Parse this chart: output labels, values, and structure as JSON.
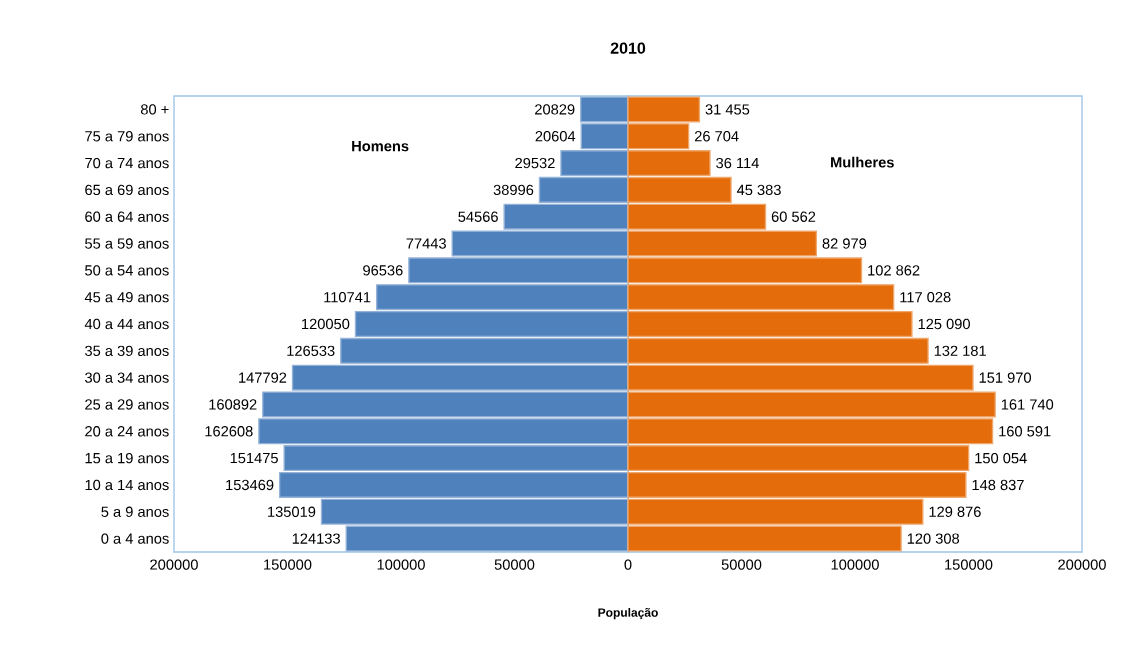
{
  "chart_data": [
    {
      "type": "bar",
      "orientation": "horizontal",
      "title": "2010",
      "categories": [
        "80 +",
        "75 a 79 anos",
        "70 a 74 anos",
        "65 a 69 anos",
        "60 a 64 anos",
        "55 a 59 anos",
        "50 a 54 anos",
        "45 a 49 anos",
        "40 a 44 anos",
        "35 a 39 anos",
        "30 a 34 anos",
        "25 a 29 anos",
        "20 a 24 anos",
        "15 a 19 anos",
        "10 a 14 anos",
        "5 a 9 anos",
        "0 a 4 anos"
      ],
      "series": [
        {
          "name": "Homens",
          "color": "#4f81bd",
          "values": [
            20829,
            20604,
            29532,
            38996,
            54566,
            77443,
            96536,
            110741,
            120050,
            126533,
            147792,
            160892,
            162608,
            151475,
            153469,
            135019,
            124133
          ]
        }
      ],
      "data_labels": true,
      "xlim": [
        200000,
        0
      ],
      "xticks": [
        200000,
        150000,
        100000,
        50000,
        0
      ]
    },
    {
      "type": "bar",
      "orientation": "horizontal",
      "xlabel": "População",
      "categories": [
        null,
        null,
        null,
        null,
        null,
        null,
        null,
        null,
        null,
        null,
        null,
        null,
        null,
        null,
        null,
        null,
        null
      ],
      "series": [
        {
          "name": "Mulheres",
          "color": "#e46c0a",
          "values": [
            31455,
            26704,
            36114,
            45383,
            60562,
            82979,
            102862,
            117028,
            125090,
            132181,
            151970,
            161740,
            160591,
            150054,
            148837,
            129876,
            120308
          ],
          "value_labels": [
            "31 455",
            "26 704",
            "36 114",
            "45 383",
            "60 562",
            "82 979",
            "102 862",
            "117 028",
            "125 090",
            "132 181",
            "151 970",
            "161 740",
            "160 591",
            "150 054",
            "148 837",
            "129 876",
            "120 308"
          ]
        }
      ],
      "xlim": [
        0,
        200000
      ],
      "xticks": [
        50000,
        100000,
        150000,
        200000
      ],
      "tick_labels": "x"
    }
  ]
}
